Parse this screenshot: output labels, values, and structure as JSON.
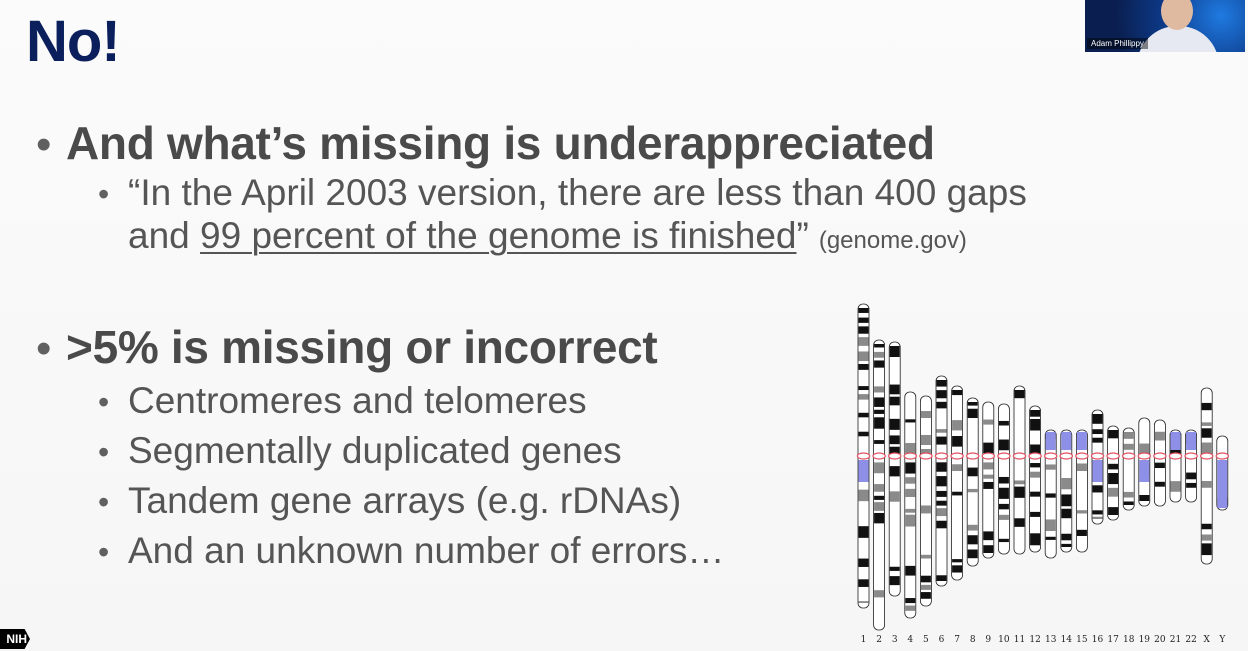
{
  "slide": {
    "title": "No!",
    "bullet1": {
      "text": "And what’s missing is underappreciated",
      "quote_part1": "“In the April 2003 version, there are less than 400 gaps",
      "quote_part2_prefix": "and ",
      "quote_part2_underlined": "99 percent of the genome is finished",
      "quote_part2_suffix": "”",
      "source": "(genome.gov)"
    },
    "bullet2": {
      "text": ">5% is missing or incorrect",
      "items": [
        "Centromeres and telomeres",
        "Segmentally duplicated genes",
        "Tandem gene arrays (e.g. rDNAs)",
        "And an unknown number of errors…"
      ]
    },
    "karyotype_labels": [
      "1",
      "2",
      "3",
      "4",
      "5",
      "6",
      "7",
      "8",
      "9",
      "10",
      "11",
      "12",
      "13",
      "14",
      "15",
      "16",
      "17",
      "18",
      "19",
      "20",
      "21",
      "22",
      "X",
      "Y"
    ],
    "logo": "NIH"
  },
  "webcam": {
    "name": "Adam Phillippy"
  },
  "colors": {
    "title": "#0b1f5c",
    "body_text": "#4a4a4a",
    "heterochromatin": "#8e8fe6",
    "centromere": "#e05060"
  }
}
